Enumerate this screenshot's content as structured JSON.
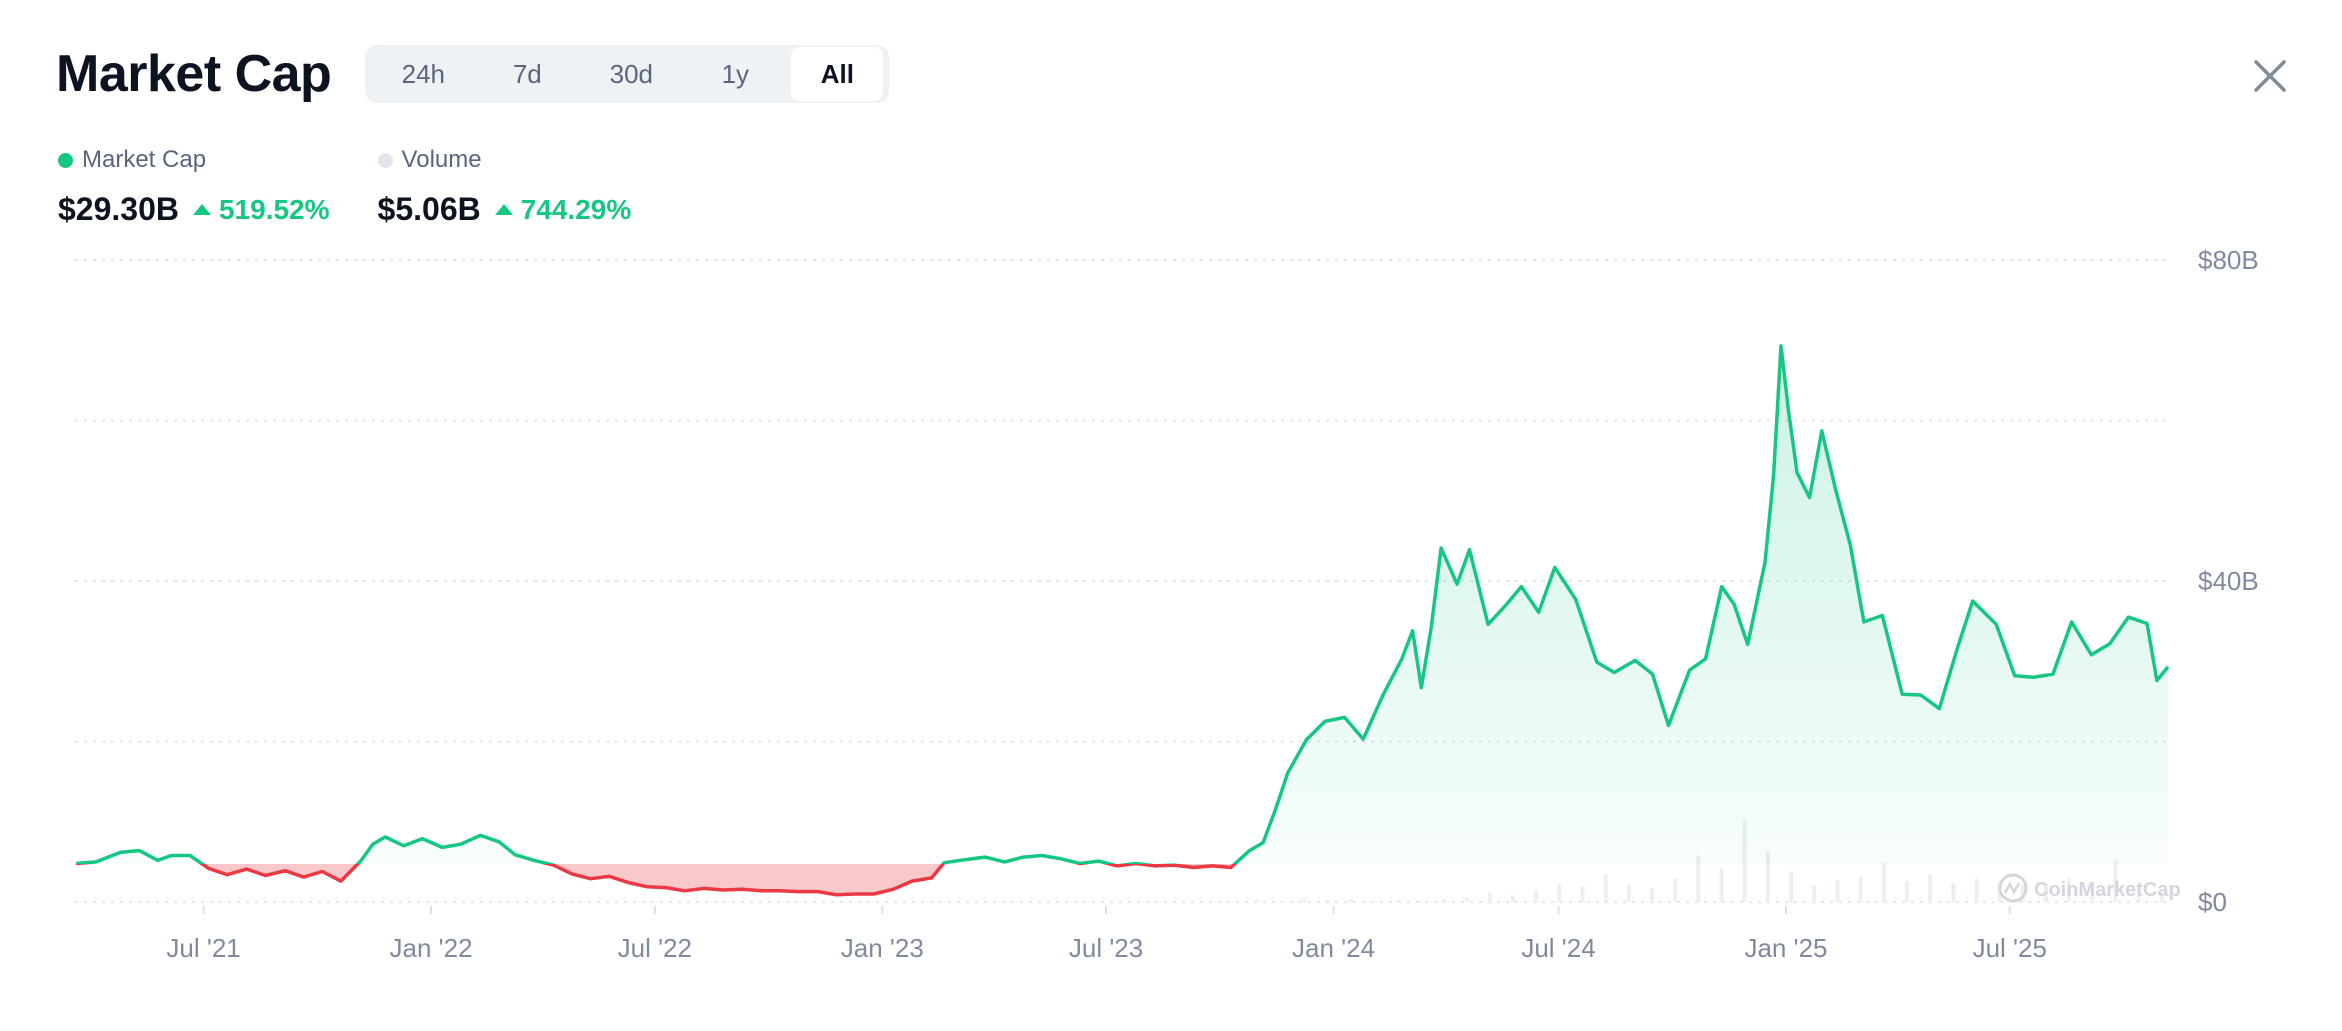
{
  "header": {
    "title": "Market Cap",
    "tabs": [
      {
        "label": "24h",
        "active": false
      },
      {
        "label": "7d",
        "active": false
      },
      {
        "label": "30d",
        "active": false
      },
      {
        "label": "1y",
        "active": false
      },
      {
        "label": "All",
        "active": true
      }
    ],
    "close_icon": "close-icon"
  },
  "legend": {
    "market_cap": {
      "label": "Market Cap",
      "value": "$29.30B",
      "change": "519.52%",
      "dot_color": "#16c784"
    },
    "volume": {
      "label": "Volume",
      "value": "$5.06B",
      "change": "744.29%",
      "dot_color": "#e2e6ec"
    }
  },
  "colors": {
    "up": "#16c784",
    "down": "#ea3943",
    "grid": "#dcdfe4",
    "axis_text": "#808a9d"
  },
  "watermark": "CoinMarketCap",
  "chart_data": {
    "type": "area",
    "title": "",
    "x_tick_labels": [
      "Jul '21",
      "Jan '22",
      "Jul '22",
      "Jan '23",
      "Jul '23",
      "Jan '24",
      "Jul '24",
      "Jan '25",
      "Jul '25"
    ],
    "y_tick_labels": [
      "$80B",
      "$40B",
      "$0"
    ],
    "ylim": [
      0,
      80
    ],
    "xlim": [
      "2021-03-19",
      "2025-11-06"
    ],
    "baseline": 4.73,
    "grid": true,
    "series": [
      {
        "name": "Market Cap",
        "unit": "$B",
        "points": [
          [
            "2021-03-20",
            4.8
          ],
          [
            "2021-04-05",
            5.0
          ],
          [
            "2021-04-25",
            6.2
          ],
          [
            "2021-05-10",
            6.4
          ],
          [
            "2021-05-25",
            5.2
          ],
          [
            "2021-06-05",
            5.8
          ],
          [
            "2021-06-20",
            5.8
          ],
          [
            "2021-07-05",
            4.2
          ],
          [
            "2021-07-20",
            3.4
          ],
          [
            "2021-08-05",
            4.1
          ],
          [
            "2021-08-20",
            3.3
          ],
          [
            "2021-09-05",
            3.9
          ],
          [
            "2021-09-20",
            3.1
          ],
          [
            "2021-10-05",
            3.8
          ],
          [
            "2021-10-20",
            2.6
          ],
          [
            "2021-11-05",
            5.1
          ],
          [
            "2021-11-15",
            7.2
          ],
          [
            "2021-11-25",
            8.1
          ],
          [
            "2021-12-10",
            7.0
          ],
          [
            "2021-12-25",
            7.9
          ],
          [
            "2022-01-10",
            6.8
          ],
          [
            "2022-01-25",
            7.2
          ],
          [
            "2022-02-10",
            8.3
          ],
          [
            "2022-02-25",
            7.5
          ],
          [
            "2022-03-10",
            5.9
          ],
          [
            "2022-03-25",
            5.2
          ],
          [
            "2022-04-10",
            4.6
          ],
          [
            "2022-04-25",
            3.5
          ],
          [
            "2022-05-10",
            2.9
          ],
          [
            "2022-05-25",
            3.2
          ],
          [
            "2022-06-10",
            2.4
          ],
          [
            "2022-06-25",
            1.9
          ],
          [
            "2022-07-10",
            1.8
          ],
          [
            "2022-07-25",
            1.4
          ],
          [
            "2022-08-10",
            1.7
          ],
          [
            "2022-08-25",
            1.5
          ],
          [
            "2022-09-10",
            1.6
          ],
          [
            "2022-09-25",
            1.4
          ],
          [
            "2022-10-10",
            1.4
          ],
          [
            "2022-10-25",
            1.3
          ],
          [
            "2022-11-10",
            1.3
          ],
          [
            "2022-11-25",
            0.9
          ],
          [
            "2022-12-10",
            1.0
          ],
          [
            "2022-12-25",
            1.0
          ],
          [
            "2023-01-10",
            1.6
          ],
          [
            "2023-01-25",
            2.6
          ],
          [
            "2023-02-10",
            3.0
          ],
          [
            "2023-02-20",
            4.9
          ],
          [
            "2023-03-10",
            5.3
          ],
          [
            "2023-03-25",
            5.6
          ],
          [
            "2023-04-10",
            5.0
          ],
          [
            "2023-04-25",
            5.6
          ],
          [
            "2023-05-10",
            5.8
          ],
          [
            "2023-05-25",
            5.4
          ],
          [
            "2023-06-10",
            4.8
          ],
          [
            "2023-06-25",
            5.1
          ],
          [
            "2023-07-10",
            4.5
          ],
          [
            "2023-07-25",
            4.8
          ],
          [
            "2023-08-10",
            4.5
          ],
          [
            "2023-08-25",
            4.6
          ],
          [
            "2023-09-10",
            4.3
          ],
          [
            "2023-09-25",
            4.5
          ],
          [
            "2023-10-10",
            4.3
          ],
          [
            "2023-10-25",
            6.4
          ],
          [
            "2023-11-05",
            7.4
          ],
          [
            "2023-11-15",
            11.5
          ],
          [
            "2023-11-25",
            16.1
          ],
          [
            "2023-12-10",
            20.2
          ],
          [
            "2023-12-25",
            22.5
          ],
          [
            "2024-01-10",
            23.0
          ],
          [
            "2024-01-25",
            20.3
          ],
          [
            "2024-02-10",
            25.8
          ],
          [
            "2024-02-25",
            30.2
          ],
          [
            "2024-03-05",
            33.8
          ],
          [
            "2024-03-12",
            26.7
          ],
          [
            "2024-03-20",
            34.2
          ],
          [
            "2024-03-28",
            44.1
          ],
          [
            "2024-04-10",
            39.6
          ],
          [
            "2024-04-20",
            43.9
          ],
          [
            "2024-05-05",
            34.6
          ],
          [
            "2024-05-20",
            37.1
          ],
          [
            "2024-06-01",
            39.3
          ],
          [
            "2024-06-15",
            36.1
          ],
          [
            "2024-06-28",
            41.7
          ],
          [
            "2024-07-15",
            37.7
          ],
          [
            "2024-08-01",
            29.9
          ],
          [
            "2024-08-15",
            28.6
          ],
          [
            "2024-09-01",
            30.1
          ],
          [
            "2024-09-15",
            28.4
          ],
          [
            "2024-09-28",
            22.0
          ],
          [
            "2024-10-15",
            28.9
          ],
          [
            "2024-10-28",
            30.3
          ],
          [
            "2024-11-10",
            39.3
          ],
          [
            "2024-11-20",
            37.1
          ],
          [
            "2024-12-01",
            32.1
          ],
          [
            "2024-12-15",
            42.3
          ],
          [
            "2024-12-22",
            53.2
          ],
          [
            "2024-12-28",
            69.3
          ],
          [
            "2025-01-03",
            61.2
          ],
          [
            "2025-01-10",
            53.5
          ],
          [
            "2025-01-20",
            50.4
          ],
          [
            "2025-01-30",
            58.7
          ],
          [
            "2025-02-10",
            51.5
          ],
          [
            "2025-02-22",
            44.5
          ],
          [
            "2025-03-05",
            34.9
          ],
          [
            "2025-03-20",
            35.7
          ],
          [
            "2025-04-05",
            25.9
          ],
          [
            "2025-04-20",
            25.8
          ],
          [
            "2025-05-05",
            24.1
          ],
          [
            "2025-05-20",
            31.8
          ],
          [
            "2025-06-01",
            37.5
          ],
          [
            "2025-06-20",
            34.6
          ],
          [
            "2025-07-05",
            28.2
          ],
          [
            "2025-07-20",
            28.0
          ],
          [
            "2025-08-05",
            28.4
          ],
          [
            "2025-08-20",
            34.9
          ],
          [
            "2025-09-05",
            30.8
          ],
          [
            "2025-09-20",
            32.2
          ],
          [
            "2025-10-05",
            35.5
          ],
          [
            "2025-10-20",
            34.7
          ],
          [
            "2025-10-28",
            27.6
          ],
          [
            "2025-11-06",
            29.3
          ]
        ]
      },
      {
        "name": "Volume",
        "unit": "$B",
        "values_approx": [
          0.3,
          0.2,
          0.5,
          0.3,
          0.4,
          0.2,
          0.3,
          0.2,
          0.4,
          0.6,
          1.3,
          0.9,
          1.6,
          2.5,
          2.1,
          3.6,
          2.4,
          1.9,
          3.1,
          6.2,
          4.5,
          10.8,
          6.8,
          4.1,
          2.2,
          2.9,
          3.5,
          5.2,
          2.8,
          3.7,
          2.5,
          3.1,
          2.6,
          2.3,
          2.0,
          3.2,
          2.3,
          5.6,
          1.8,
          1.2
        ]
      }
    ]
  }
}
